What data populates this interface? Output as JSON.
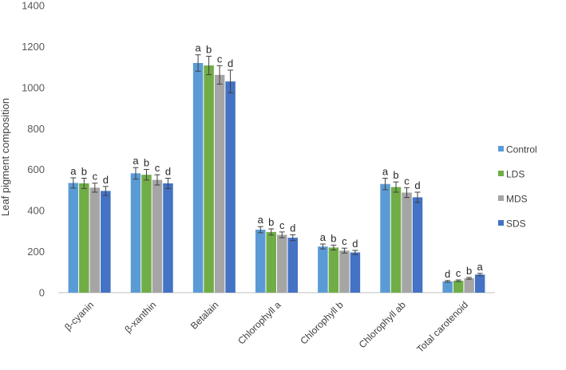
{
  "chart_data": {
    "type": "bar",
    "title": "",
    "xlabel": "",
    "ylabel": "Leaf pigment composition",
    "ylim": [
      0,
      1400
    ],
    "yticks": [
      0,
      200,
      400,
      600,
      800,
      1000,
      1200,
      1400
    ],
    "grid": false,
    "legend_position": "right",
    "categories": [
      "β-cyanin",
      "β-xanthin",
      "Betalain",
      "Chlorophyll a",
      "Chlorophyll b",
      "Chlorophyll ab",
      "Total carotenoid"
    ],
    "series": [
      {
        "name": "Control",
        "color": "#5b9bd5",
        "values": [
          535,
          582,
          1120,
          307,
          225,
          530,
          55
        ],
        "errors": [
          25,
          28,
          40,
          15,
          12,
          28,
          4
        ],
        "labels": [
          "a",
          "a",
          "a",
          "a",
          "a",
          "a",
          "d"
        ]
      },
      {
        "name": "LDS",
        "color": "#70ad47",
        "values": [
          533,
          575,
          1108,
          296,
          220,
          515,
          58
        ],
        "errors": [
          25,
          26,
          45,
          15,
          12,
          25,
          4
        ],
        "labels": [
          "b",
          "b",
          "b",
          "b",
          "b",
          "b",
          "c"
        ]
      },
      {
        "name": "MDS",
        "color": "#a5a5a5",
        "values": [
          512,
          550,
          1062,
          282,
          205,
          488,
          70
        ],
        "errors": [
          22,
          25,
          45,
          14,
          12,
          24,
          4
        ],
        "labels": [
          "c",
          "c",
          "c",
          "c",
          "c",
          "c",
          "b"
        ]
      },
      {
        "name": "SDS",
        "color": "#4472c4",
        "values": [
          496,
          533,
          1030,
          268,
          196,
          465,
          88
        ],
        "errors": [
          22,
          25,
          55,
          14,
          10,
          25,
          6
        ],
        "labels": [
          "d",
          "d",
          "d",
          "d",
          "d",
          "d",
          "a"
        ]
      }
    ]
  }
}
